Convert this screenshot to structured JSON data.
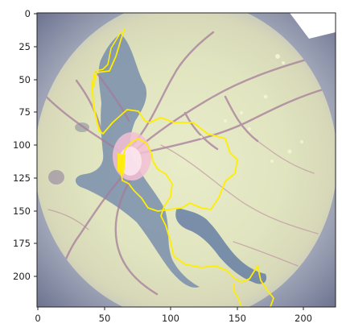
{
  "figure": {
    "type": "image",
    "description_visible": "fundus-image-with-yellow-segmentation-contour",
    "x_ticks": [
      "0",
      "50",
      "100",
      "150",
      "200"
    ],
    "y_ticks": [
      "0",
      "25",
      "50",
      "75",
      "100",
      "125",
      "150",
      "175",
      "200"
    ],
    "xlim": [
      0,
      224
    ],
    "ylim": [
      224,
      0
    ],
    "colors": {
      "contour": "#ffee00",
      "background_fill": "#d8dfb9",
      "dark_lesion": "#5f78a3",
      "vessel": "#a67b9b",
      "disc_highlight": "#f3c0d3",
      "frame": "#8d93a6"
    }
  }
}
